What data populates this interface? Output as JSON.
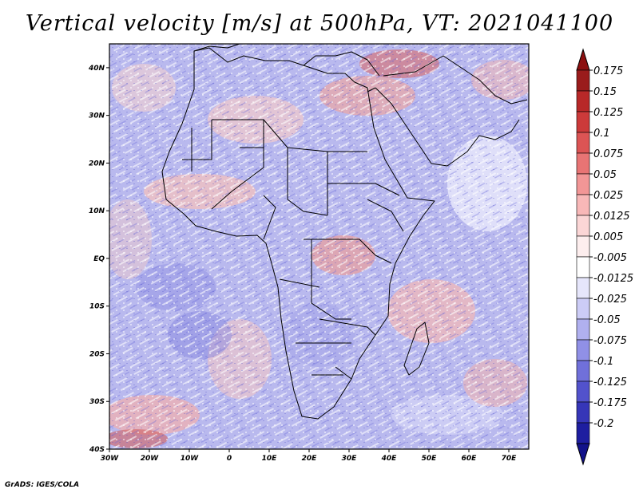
{
  "title": "Vertical velocity [m/s] at 500hPa, VT: 2021041100",
  "credit": "GrADS: IGES/COLA",
  "map": {
    "region": "Africa",
    "field": "vertical velocity",
    "level": "500hPa",
    "lon_range": [
      -30,
      75
    ],
    "lat_range": [
      -40,
      45
    ],
    "lon_ticks": [
      {
        "value": -30,
        "label": "30W"
      },
      {
        "value": -20,
        "label": "20W"
      },
      {
        "value": -10,
        "label": "10W"
      },
      {
        "value": 0,
        "label": "0"
      },
      {
        "value": 10,
        "label": "10E"
      },
      {
        "value": 20,
        "label": "20E"
      },
      {
        "value": 30,
        "label": "30E"
      },
      {
        "value": 40,
        "label": "40E"
      },
      {
        "value": 50,
        "label": "50E"
      },
      {
        "value": 60,
        "label": "60E"
      },
      {
        "value": 70,
        "label": "70E"
      }
    ],
    "lat_ticks": [
      {
        "value": 40,
        "label": "40N"
      },
      {
        "value": 30,
        "label": "30N"
      },
      {
        "value": 20,
        "label": "20N"
      },
      {
        "value": 10,
        "label": "10N"
      },
      {
        "value": 0,
        "label": "EQ"
      },
      {
        "value": -10,
        "label": "10S"
      },
      {
        "value": -20,
        "label": "20S"
      },
      {
        "value": -30,
        "label": "30S"
      },
      {
        "value": -40,
        "label": "40S"
      }
    ]
  },
  "colorbar": {
    "levels": [
      {
        "label": "0.175",
        "color": "#9a1c1c"
      },
      {
        "label": "0.15",
        "color": "#b82828"
      },
      {
        "label": "0.125",
        "color": "#cc3a3a"
      },
      {
        "label": "0.1",
        "color": "#dc5454"
      },
      {
        "label": "0.075",
        "color": "#e87474"
      },
      {
        "label": "0.05",
        "color": "#f29696"
      },
      {
        "label": "0.025",
        "color": "#f8b8b8"
      },
      {
        "label": "0.0125",
        "color": "#fbd6d6"
      },
      {
        "label": "0.005",
        "color": "#fdeeee"
      },
      {
        "label": "-0.005",
        "color": "#ffffff"
      },
      {
        "label": "-0.0125",
        "color": "#e6e6fb"
      },
      {
        "label": "-0.025",
        "color": "#ccccf6"
      },
      {
        "label": "-0.05",
        "color": "#b0b0ef"
      },
      {
        "label": "-0.075",
        "color": "#9090e6"
      },
      {
        "label": "-0.1",
        "color": "#7070da"
      },
      {
        "label": "-0.125",
        "color": "#5252cc"
      },
      {
        "label": "-0.175",
        "color": "#3636b8"
      },
      {
        "label": "-0.2",
        "color": "#1e1ea0"
      }
    ],
    "top_color": "#8c1010",
    "bottom_color": "#12128a"
  }
}
